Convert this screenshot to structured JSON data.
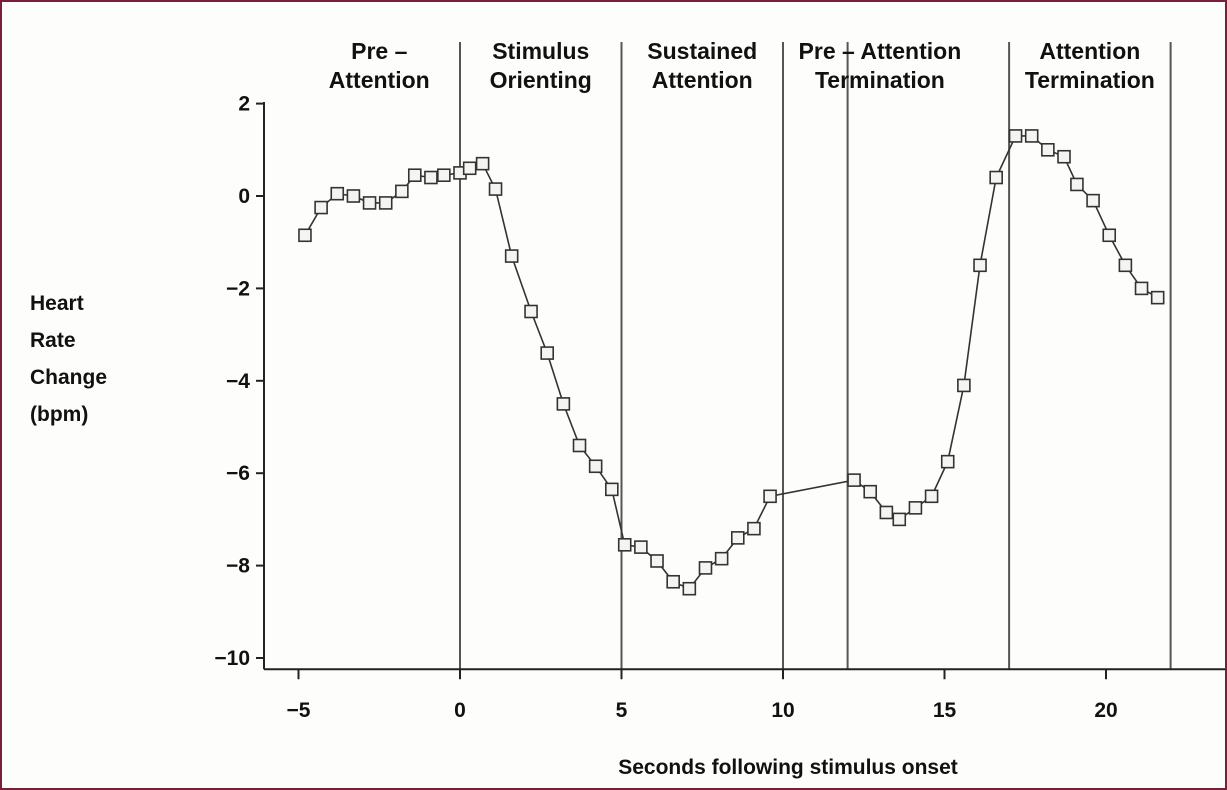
{
  "chart_data": {
    "type": "line",
    "title": "",
    "xlabel": "Seconds following stimulus onset",
    "ylabel": "Heart Rate Change (bpm)",
    "ylabel_lines": [
      "Heart",
      "Rate",
      "Change",
      "(bpm)"
    ],
    "xlim": [
      -6,
      24
    ],
    "ylim": [
      -10.2,
      2.2
    ],
    "x_ticks": [
      -5,
      0,
      5,
      10,
      15,
      20
    ],
    "x_tick_labels": [
      "−5",
      "0",
      "5",
      "10",
      "15",
      "20"
    ],
    "y_ticks": [
      2,
      0,
      -2,
      -4,
      -6,
      -8,
      -10
    ],
    "y_tick_labels": [
      "2",
      "0",
      "−2",
      "−4",
      "−6",
      "−8",
      "−10"
    ],
    "grid": false,
    "legend": "none",
    "marker": "open-square",
    "phase_boundaries": [
      0,
      5,
      10,
      12,
      17,
      22
    ],
    "phases": [
      {
        "lines": [
          "Pre –",
          "Attention"
        ],
        "center": -2.5
      },
      {
        "lines": [
          "Stimulus",
          "Orienting"
        ],
        "center": 2.5
      },
      {
        "lines": [
          "Sustained",
          "Attention"
        ],
        "center": 7.5
      },
      {
        "lines": [
          "Pre – Attention",
          "Termination"
        ],
        "center": 13.0
      },
      {
        "lines": [
          "Attention",
          "Termination"
        ],
        "center": 19.5
      }
    ],
    "series": [
      {
        "points": [
          [
            -4.8,
            -0.85
          ],
          [
            -4.3,
            -0.25
          ],
          [
            -3.8,
            0.05
          ],
          [
            -3.3,
            0.0
          ],
          [
            -2.8,
            -0.15
          ],
          [
            -2.3,
            -0.15
          ],
          [
            -1.8,
            0.1
          ],
          [
            -1.4,
            0.45
          ],
          [
            -0.9,
            0.4
          ],
          [
            -0.5,
            0.45
          ],
          [
            0.0,
            0.5
          ],
          [
            0.3,
            0.6
          ],
          [
            0.7,
            0.7
          ],
          [
            1.1,
            0.15
          ],
          [
            1.6,
            -1.3
          ],
          [
            2.2,
            -2.5
          ],
          [
            2.7,
            -3.4
          ],
          [
            3.2,
            -4.5
          ],
          [
            3.7,
            -5.4
          ],
          [
            4.2,
            -5.85
          ],
          [
            4.7,
            -6.35
          ],
          [
            5.1,
            -7.55
          ],
          [
            5.6,
            -7.6
          ],
          [
            6.1,
            -7.9
          ],
          [
            6.6,
            -8.35
          ],
          [
            7.1,
            -8.5
          ],
          [
            7.6,
            -8.05
          ],
          [
            8.1,
            -7.85
          ],
          [
            8.6,
            -7.4
          ],
          [
            9.1,
            -7.2
          ],
          [
            9.6,
            -6.5
          ],
          [
            12.2,
            -6.15
          ],
          [
            12.7,
            -6.4
          ],
          [
            13.2,
            -6.85
          ],
          [
            13.6,
            -7.0
          ],
          [
            14.1,
            -6.75
          ],
          [
            14.6,
            -6.5
          ],
          [
            15.1,
            -5.75
          ],
          [
            15.6,
            -4.1
          ],
          [
            16.1,
            -1.5
          ],
          [
            16.6,
            0.4
          ],
          [
            17.2,
            1.3
          ],
          [
            17.7,
            1.3
          ],
          [
            18.2,
            1.0
          ],
          [
            18.7,
            0.85
          ],
          [
            19.1,
            0.25
          ],
          [
            19.6,
            -0.1
          ],
          [
            20.1,
            -0.85
          ],
          [
            20.6,
            -1.5
          ],
          [
            21.1,
            -2.0
          ],
          [
            21.6,
            -2.2
          ]
        ]
      }
    ]
  }
}
